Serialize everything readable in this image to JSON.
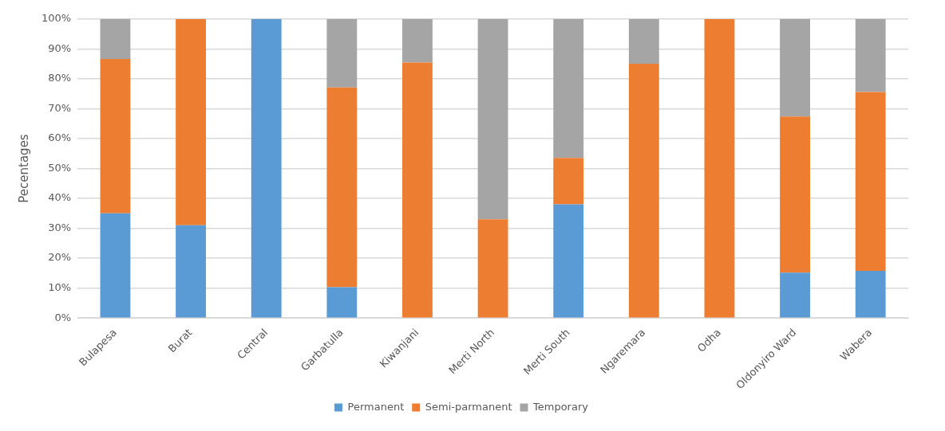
{
  "chart_data": {
    "type": "bar",
    "stacked": true,
    "ylabel": "Pecentages",
    "categories": [
      "Bulapesa",
      "Burat",
      "Central",
      "Garbatulla",
      "Kiwanjani",
      "Merti North",
      "Merti South",
      "Ngaremara",
      "Odha",
      "Oldonyiro Ward",
      "Wabera"
    ],
    "series": [
      {
        "name": "Permanent",
        "color": "#5b9bd5",
        "values": [
          35,
          31,
          100,
          10.3,
          0,
          0,
          38,
          0,
          0,
          15.2,
          15.8
        ]
      },
      {
        "name": "Semi-parmanent",
        "color": "#ed7d31",
        "values": [
          51.6,
          69,
          0,
          66.8,
          85.4,
          33,
          15.5,
          85,
          100,
          52.2,
          59.8
        ]
      },
      {
        "name": "Temporary",
        "color": "#a5a5a5",
        "values": [
          13.4,
          0,
          0,
          22.9,
          14.6,
          67,
          46.5,
          15,
          0,
          32.6,
          24.4
        ]
      }
    ],
    "ylim": [
      0,
      100
    ],
    "yticks": [
      {
        "value": 0,
        "label": "0%"
      },
      {
        "value": 10,
        "label": "10%"
      },
      {
        "value": 20,
        "label": "20%"
      },
      {
        "value": 30,
        "label": "30%"
      },
      {
        "value": 40,
        "label": "40%"
      },
      {
        "value": 50,
        "label": "50%"
      },
      {
        "value": 60,
        "label": "60%"
      },
      {
        "value": 70,
        "label": "70%"
      },
      {
        "value": 80,
        "label": "80%"
      },
      {
        "value": 90,
        "label": "90%"
      },
      {
        "value": 100,
        "label": "100%"
      }
    ],
    "grid": "y",
    "legend": "bottom"
  }
}
